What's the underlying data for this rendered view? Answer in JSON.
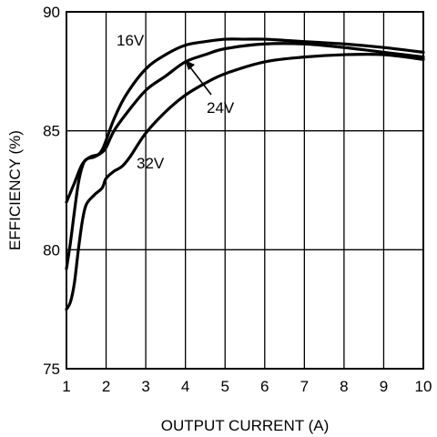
{
  "chart_data": {
    "type": "line",
    "title": "",
    "xlabel": "OUTPUT CURRENT (A)",
    "ylabel": "EFFICIENCY (%)",
    "xlim": [
      1,
      10
    ],
    "ylim": [
      75,
      90
    ],
    "xticks": [
      1,
      2,
      3,
      4,
      5,
      6,
      7,
      8,
      9,
      10
    ],
    "yticks": [
      75,
      80,
      85,
      90
    ],
    "grid": true,
    "series": [
      {
        "name": "16V",
        "x": [
          1.0,
          1.2,
          1.4,
          1.6,
          1.8,
          1.9,
          2.0,
          2.2,
          2.5,
          3.0,
          3.5,
          4.0,
          4.5,
          5.0,
          5.5,
          6.0,
          6.5,
          7.0,
          8.0,
          9.0,
          10.0
        ],
        "y": [
          82.0,
          82.8,
          83.6,
          83.9,
          84.0,
          84.2,
          84.6,
          85.5,
          86.5,
          87.6,
          88.2,
          88.6,
          88.75,
          88.85,
          88.85,
          88.85,
          88.8,
          88.75,
          88.65,
          88.5,
          88.3
        ]
      },
      {
        "name": "24V",
        "x": [
          1.0,
          1.1,
          1.2,
          1.3,
          1.4,
          1.5,
          1.7,
          1.9,
          2.0,
          2.2,
          2.5,
          3.0,
          3.5,
          4.0,
          4.5,
          5.0,
          6.0,
          7.0,
          8.0,
          9.0,
          10.0
        ],
        "y": [
          79.2,
          80.3,
          81.6,
          82.8,
          83.5,
          83.8,
          83.9,
          84.1,
          84.3,
          85.0,
          85.7,
          86.7,
          87.3,
          87.9,
          88.2,
          88.45,
          88.65,
          88.65,
          88.5,
          88.3,
          88.1
        ]
      },
      {
        "name": "32V",
        "x": [
          1.0,
          1.1,
          1.2,
          1.3,
          1.4,
          1.5,
          1.7,
          1.9,
          2.0,
          2.2,
          2.4,
          2.6,
          3.0,
          3.5,
          4.0,
          4.5,
          5.0,
          6.0,
          7.0,
          8.0,
          9.0,
          10.0
        ],
        "y": [
          77.5,
          77.8,
          78.6,
          80.0,
          81.2,
          81.9,
          82.3,
          82.6,
          83.0,
          83.3,
          83.5,
          83.9,
          84.9,
          85.8,
          86.5,
          87.0,
          87.4,
          87.9,
          88.1,
          88.2,
          88.2,
          88.0
        ]
      }
    ],
    "annotations": [
      {
        "text": "16V",
        "series": "16V"
      },
      {
        "text": "24V",
        "series": "24V",
        "arrow": true
      },
      {
        "text": "32V",
        "series": "32V"
      }
    ]
  }
}
